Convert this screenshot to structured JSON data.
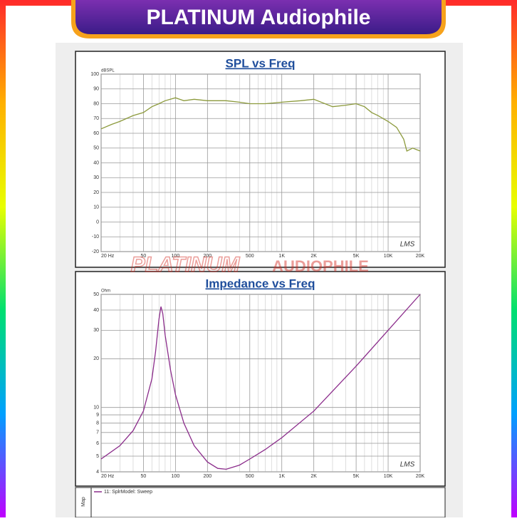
{
  "header": {
    "title": "PLATINUM Audiophile"
  },
  "watermark": [
    "PLATINUM",
    "AUDIOPHILE"
  ],
  "legend_side": "Map",
  "chart_data": [
    {
      "type": "line",
      "title": "SPL vs Freq",
      "ylabel": "dBSPL",
      "annotation": "LMS",
      "xscale": "log",
      "xlim": [
        20,
        20000
      ],
      "xticks": [
        {
          "value": 20,
          "label": "20 Hz"
        },
        50,
        100,
        200,
        500,
        {
          "value": 1000,
          "label": "1K"
        },
        {
          "value": 2000,
          "label": "2K"
        },
        {
          "value": 5000,
          "label": "5K"
        },
        {
          "value": 10000,
          "label": "10K"
        },
        {
          "value": 20000,
          "label": "20K"
        }
      ],
      "xminor": [
        30,
        40,
        60,
        70,
        80,
        90,
        300,
        400,
        600,
        700,
        800,
        900,
        3000,
        4000,
        6000,
        7000,
        8000,
        9000
      ],
      "ylim": [
        -20,
        100
      ],
      "yticks": [
        -20,
        -10,
        0,
        10,
        20,
        30,
        40,
        50,
        60,
        70,
        80,
        90,
        100
      ],
      "grid": true,
      "x": [
        20,
        25,
        30,
        40,
        50,
        60,
        70,
        80,
        100,
        120,
        150,
        200,
        300,
        400,
        500,
        700,
        1000,
        1500,
        2000,
        3000,
        4000,
        5000,
        6000,
        7000,
        8000,
        10000,
        12000,
        14000,
        15000,
        17000,
        20000
      ],
      "series": [
        {
          "color": "#8c9a3c",
          "values": [
            63,
            66,
            68,
            72,
            74,
            78,
            80,
            82,
            84,
            82,
            83,
            82,
            82,
            81,
            80,
            80,
            81,
            82,
            83,
            78,
            79,
            80,
            78,
            74,
            72,
            68,
            64,
            56,
            48,
            50,
            48
          ]
        }
      ]
    },
    {
      "type": "line",
      "title": "Impedance vs Freq",
      "ylabel": "Ohm",
      "annotation": "LMS",
      "xscale": "log",
      "yscale": "log",
      "xlim": [
        20,
        20000
      ],
      "xticks": [
        {
          "value": 20,
          "label": "20 Hz"
        },
        50,
        100,
        200,
        500,
        {
          "value": 1000,
          "label": "1K"
        },
        {
          "value": 2000,
          "label": "2K"
        },
        {
          "value": 5000,
          "label": "5K"
        },
        {
          "value": 10000,
          "label": "10K"
        },
        {
          "value": 20000,
          "label": "20K"
        }
      ],
      "xminor": [
        30,
        40,
        60,
        70,
        80,
        90,
        300,
        400,
        600,
        700,
        800,
        900,
        3000,
        4000,
        6000,
        7000,
        8000,
        9000
      ],
      "ylim": [
        4,
        50
      ],
      "yticks": [
        4,
        5,
        6,
        7,
        8,
        9,
        10,
        20,
        30,
        40,
        50
      ],
      "grid": true,
      "x": [
        20,
        30,
        40,
        50,
        60,
        65,
        70,
        73,
        76,
        80,
        90,
        100,
        120,
        150,
        200,
        250,
        300,
        400,
        500,
        700,
        1000,
        2000,
        5000,
        10000,
        20000
      ],
      "series": [
        {
          "name": "11: SplrModel: Sweep",
          "color": "#8b2c8b",
          "values": [
            4.8,
            5.8,
            7.2,
            9.5,
            15,
            22,
            35,
            42,
            38,
            28,
            17,
            12,
            8,
            5.8,
            4.6,
            4.2,
            4.15,
            4.4,
            4.8,
            5.5,
            6.5,
            9.5,
            18,
            30,
            50
          ]
        }
      ]
    }
  ]
}
